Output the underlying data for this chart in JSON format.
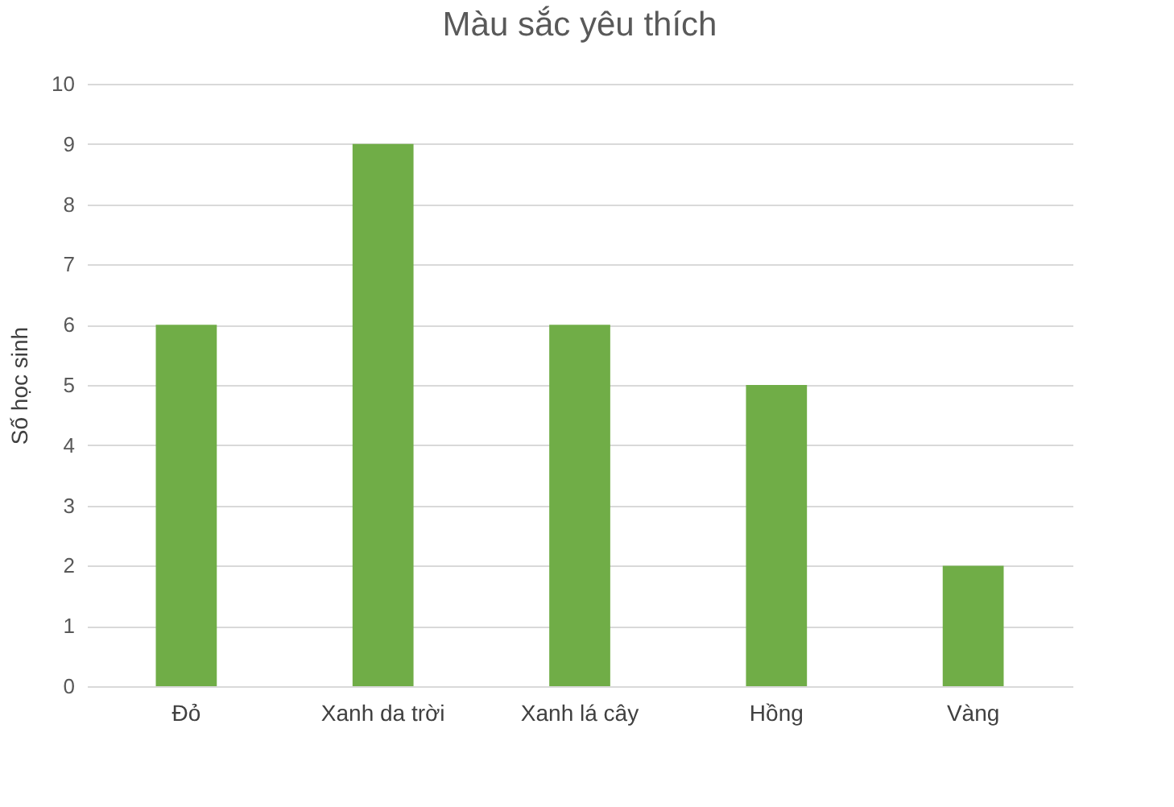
{
  "chart_data": {
    "type": "bar",
    "title": "Màu sắc yêu thích",
    "ylabel": "Số học sinh",
    "categories": [
      "Đỏ",
      "Xanh da trời",
      "Xanh lá cây",
      "Hồng",
      "Vàng"
    ],
    "series": [
      {
        "color": "#70ad47",
        "values": [
          6,
          9,
          6,
          5,
          2
        ]
      }
    ],
    "ylim": [
      0,
      10
    ],
    "yticks": [
      0,
      1,
      2,
      3,
      4,
      5,
      6,
      7,
      8,
      9,
      10
    ],
    "grid": "y",
    "legend": false
  }
}
